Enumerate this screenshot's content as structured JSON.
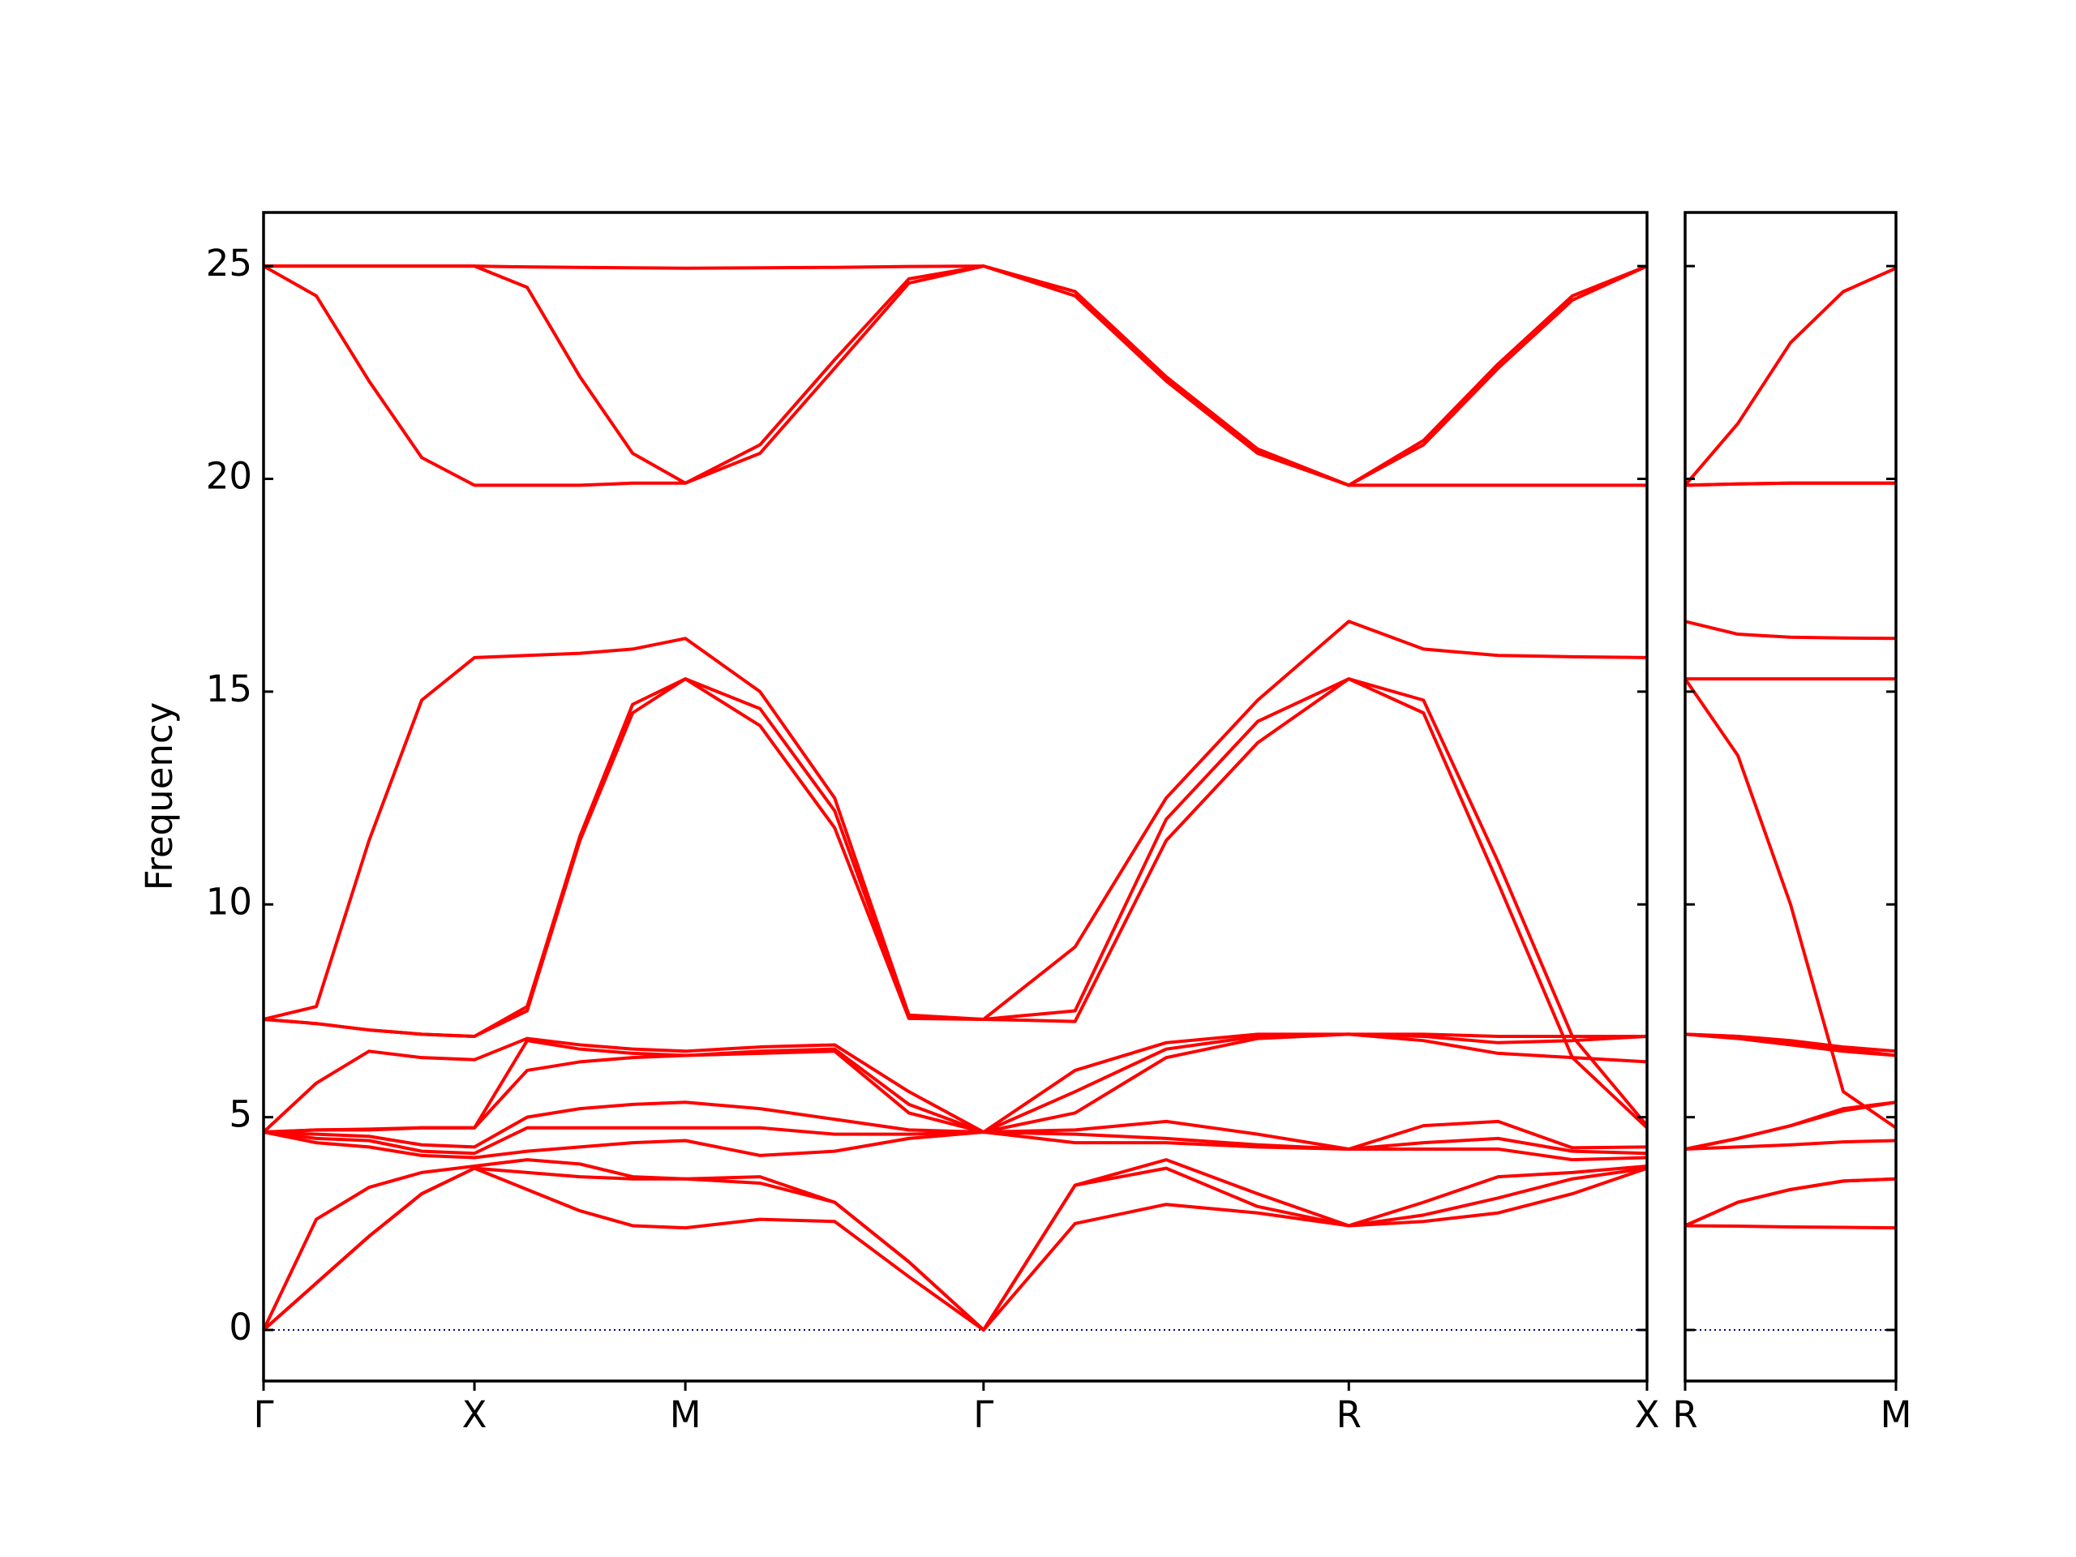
{
  "chart_data": [
    {
      "type": "line",
      "ylabel": "Frequency",
      "color": "#ff0000",
      "zero_line_color": "#00008b",
      "show_ytick_labels": true,
      "xlim": [
        0,
        3.28
      ],
      "ylim": [
        -1.2,
        26.26
      ],
      "yticks": [
        0,
        5,
        10,
        15,
        20,
        25
      ],
      "xticks": [
        {
          "value": 0,
          "label": "Γ"
        },
        {
          "value": 0.5,
          "label": "X"
        },
        {
          "value": 1.0,
          "label": "M"
        },
        {
          "value": 1.707,
          "label": "Γ"
        },
        {
          "value": 2.573,
          "label": "R"
        },
        {
          "value": 3.28,
          "label": "X"
        }
      ],
      "x": [
        0,
        0.125,
        0.25,
        0.375,
        0.5,
        0.625,
        0.75,
        0.875,
        1.0,
        1.177,
        1.354,
        1.53,
        1.707,
        1.924,
        2.14,
        2.357,
        2.573,
        2.75,
        2.927,
        3.103,
        3.28
      ],
      "series": [
        {
          "values": [
            0,
            1.1,
            2.2,
            3.2,
            3.8,
            3.3,
            2.8,
            2.45,
            2.4,
            2.6,
            2.55,
            1.25,
            0,
            2.5,
            2.95,
            2.75,
            2.45,
            2.55,
            2.75,
            3.2,
            3.8
          ]
        },
        {
          "values": [
            0,
            1.1,
            2.2,
            3.2,
            3.8,
            3.7,
            3.6,
            3.55,
            3.55,
            3.45,
            3.0,
            1.6,
            0,
            3.4,
            3.8,
            2.9,
            2.45,
            2.7,
            3.1,
            3.55,
            3.8
          ]
        },
        {
          "values": [
            0,
            2.6,
            3.35,
            3.7,
            3.85,
            4.0,
            3.9,
            3.6,
            3.55,
            3.6,
            3.0,
            1.6,
            0,
            3.4,
            4.0,
            3.2,
            2.45,
            3.0,
            3.6,
            3.7,
            3.85
          ]
        },
        {
          "values": [
            4.65,
            4.4,
            4.3,
            4.1,
            4.05,
            4.2,
            4.3,
            4.4,
            4.45,
            4.1,
            4.2,
            4.5,
            4.65,
            4.4,
            4.4,
            4.3,
            4.25,
            4.25,
            4.25,
            4.0,
            4.05
          ]
        },
        {
          "values": [
            4.65,
            4.5,
            4.45,
            4.2,
            4.15,
            4.75,
            4.75,
            4.75,
            4.75,
            4.75,
            4.6,
            4.6,
            4.65,
            4.6,
            4.5,
            4.35,
            4.25,
            4.4,
            4.5,
            4.2,
            4.15
          ]
        },
        {
          "values": [
            4.65,
            4.6,
            4.55,
            4.35,
            4.3,
            5.0,
            5.2,
            5.3,
            5.35,
            5.2,
            4.95,
            4.7,
            4.65,
            4.7,
            4.9,
            4.6,
            4.25,
            4.8,
            4.9,
            4.28,
            4.3
          ]
        },
        {
          "values": [
            4.65,
            4.7,
            4.7,
            4.75,
            4.75,
            6.1,
            6.3,
            6.4,
            6.45,
            6.5,
            6.55,
            5.1,
            4.65,
            5.1,
            6.4,
            6.85,
            6.95,
            6.8,
            6.5,
            6.4,
            6.3
          ]
        },
        {
          "values": [
            4.65,
            4.7,
            4.72,
            4.75,
            4.75,
            6.8,
            6.6,
            6.5,
            6.45,
            6.55,
            6.6,
            5.3,
            4.65,
            5.6,
            6.6,
            6.9,
            6.95,
            6.9,
            6.75,
            6.8,
            6.9
          ]
        },
        {
          "values": [
            4.65,
            5.8,
            6.55,
            6.4,
            6.35,
            6.85,
            6.7,
            6.6,
            6.55,
            6.65,
            6.7,
            5.6,
            4.65,
            6.1,
            6.75,
            6.95,
            6.95,
            6.95,
            6.9,
            6.9,
            6.9
          ]
        },
        {
          "values": [
            7.3,
            7.2,
            7.05,
            6.95,
            6.9,
            7.5,
            11.5,
            14.5,
            15.3,
            14.2,
            11.8,
            7.32,
            7.3,
            7.25,
            11.5,
            13.8,
            15.3,
            14.5,
            10.5,
            6.4,
            4.75
          ]
        },
        {
          "values": [
            7.3,
            7.2,
            7.05,
            6.95,
            6.9,
            7.6,
            11.6,
            14.7,
            15.3,
            14.6,
            12.2,
            7.35,
            7.3,
            7.5,
            12.0,
            14.3,
            15.3,
            14.8,
            11.0,
            6.9,
            4.8
          ]
        },
        {
          "values": [
            7.3,
            7.6,
            11.5,
            14.8,
            15.8,
            15.85,
            15.9,
            16.0,
            16.25,
            15.0,
            12.5,
            7.4,
            7.3,
            9.0,
            12.5,
            14.8,
            16.65,
            16.0,
            15.85,
            15.82,
            15.8
          ]
        },
        {
          "values": [
            25,
            24.3,
            22.3,
            20.5,
            19.85,
            19.85,
            19.85,
            19.9,
            19.9,
            20.6,
            22.6,
            24.6,
            25,
            24.3,
            22.3,
            20.6,
            19.85,
            19.85,
            19.85,
            19.85,
            19.85
          ]
        },
        {
          "values": [
            25,
            25,
            25,
            25,
            25,
            24.5,
            22.4,
            20.6,
            19.9,
            20.8,
            22.8,
            24.7,
            25,
            24.4,
            22.35,
            20.65,
            19.85,
            20.8,
            22.6,
            24.2,
            25
          ]
        },
        {
          "values": [
            25,
            25,
            25,
            25,
            25,
            24.98,
            24.97,
            24.96,
            24.95,
            24.96,
            24.97,
            24.99,
            25,
            24.4,
            22.4,
            20.7,
            19.85,
            20.9,
            22.7,
            24.3,
            25
          ]
        }
      ]
    },
    {
      "type": "line",
      "color": "#ff0000",
      "zero_line_color": "#00008b",
      "show_ytick_labels": false,
      "xlim": [
        0,
        0.5
      ],
      "ylim": [
        -1.2,
        26.26
      ],
      "yticks": [
        0,
        5,
        10,
        15,
        20,
        25
      ],
      "xticks": [
        {
          "value": 0,
          "label": "R"
        },
        {
          "value": 0.5,
          "label": "M"
        }
      ],
      "x": [
        0,
        0.125,
        0.25,
        0.375,
        0.5
      ],
      "series": [
        {
          "values": [
            2.45,
            2.44,
            2.42,
            2.41,
            2.4
          ]
        },
        {
          "values": [
            2.45,
            3.0,
            3.3,
            3.5,
            3.55
          ]
        },
        {
          "values": [
            2.45,
            3.0,
            3.3,
            3.5,
            3.55
          ]
        },
        {
          "values": [
            4.25,
            4.3,
            4.35,
            4.42,
            4.45
          ]
        },
        {
          "values": [
            4.25,
            4.5,
            4.8,
            5.15,
            5.35
          ]
        },
        {
          "values": [
            4.25,
            4.5,
            4.8,
            5.2,
            5.35
          ]
        },
        {
          "values": [
            6.95,
            6.85,
            6.7,
            6.55,
            6.45
          ]
        },
        {
          "values": [
            6.95,
            6.9,
            6.75,
            6.6,
            6.45
          ]
        },
        {
          "values": [
            6.95,
            6.9,
            6.8,
            6.65,
            6.55
          ]
        },
        {
          "values": [
            15.3,
            13.5,
            10.0,
            5.6,
            4.75
          ]
        },
        {
          "values": [
            15.3,
            15.3,
            15.3,
            15.3,
            15.3
          ]
        },
        {
          "values": [
            16.65,
            16.35,
            16.28,
            16.26,
            16.25
          ]
        },
        {
          "values": [
            19.85,
            19.88,
            19.9,
            19.9,
            19.9
          ]
        },
        {
          "values": [
            19.85,
            19.88,
            19.9,
            19.9,
            19.9
          ]
        },
        {
          "values": [
            19.85,
            21.3,
            23.2,
            24.4,
            24.95
          ]
        }
      ]
    }
  ]
}
